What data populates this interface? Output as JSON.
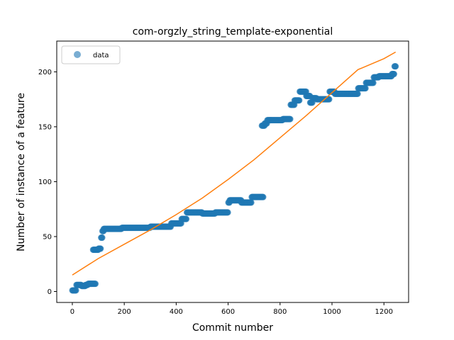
{
  "chart_data": {
    "type": "scatter",
    "title": "com-orgzly_string_template-exponential",
    "xlabel": "Commit number",
    "ylabel": "Number of instance of a feature",
    "xlim": [
      -60,
      1295
    ],
    "ylim": [
      -10,
      228
    ],
    "xticks": [
      0,
      200,
      400,
      600,
      800,
      1000,
      1200
    ],
    "yticks": [
      0,
      50,
      100,
      150,
      200
    ],
    "grid": false,
    "legend": {
      "placement": "top-left",
      "entries": [
        "data"
      ]
    },
    "colors": {
      "data": "#1f77b4",
      "fit": "#ff7f0e"
    },
    "series": [
      {
        "name": "data",
        "kind": "scatter",
        "segments": [
          {
            "x": [
              0,
              15
            ],
            "y": 1
          },
          {
            "x": [
              16,
              35
            ],
            "y": 6
          },
          {
            "x": [
              36,
              50
            ],
            "y": 5
          },
          {
            "x": [
              51,
              60
            ],
            "y": 6
          },
          {
            "x": [
              61,
              90
            ],
            "y": 7
          },
          {
            "x": [
              80,
              100
            ],
            "y": 38
          },
          {
            "x": [
              101,
              110
            ],
            "y": 39
          },
          {
            "x": [
              111,
              115
            ],
            "y": 49
          },
          {
            "x": [
              116,
              120
            ],
            "y": 55
          },
          {
            "x": [
              121,
              190
            ],
            "y": 57
          },
          {
            "x": [
              191,
              300
            ],
            "y": 58
          },
          {
            "x": [
              301,
              380
            ],
            "y": 59
          },
          {
            "x": [
              381,
              420
            ],
            "y": 62
          },
          {
            "x": [
              421,
              440
            ],
            "y": 66
          },
          {
            "x": [
              441,
              500
            ],
            "y": 72
          },
          {
            "x": [
              501,
              550
            ],
            "y": 71
          },
          {
            "x": [
              551,
              600
            ],
            "y": 72
          },
          {
            "x": [
              601,
              605
            ],
            "y": 81
          },
          {
            "x": [
              606,
              650
            ],
            "y": 83
          },
          {
            "x": [
              651,
              690
            ],
            "y": 81
          },
          {
            "x": [
              691,
              735
            ],
            "y": 86
          },
          {
            "x": [
              730,
              740
            ],
            "y": 151
          },
          {
            "x": [
              741,
              750
            ],
            "y": 153
          },
          {
            "x": [
              751,
              810
            ],
            "y": 156
          },
          {
            "x": [
              811,
              840
            ],
            "y": 157
          },
          {
            "x": [
              841,
              855
            ],
            "y": 170
          },
          {
            "x": [
              856,
              875
            ],
            "y": 174
          },
          {
            "x": [
              876,
              900
            ],
            "y": 182
          },
          {
            "x": [
              901,
              915
            ],
            "y": 178
          },
          {
            "x": [
              916,
              925
            ],
            "y": 172
          },
          {
            "x": [
              926,
              940
            ],
            "y": 176
          },
          {
            "x": [
              941,
              990
            ],
            "y": 175
          },
          {
            "x": [
              991,
              1010
            ],
            "y": 182
          },
          {
            "x": [
              1011,
              1100
            ],
            "y": 180
          },
          {
            "x": [
              1101,
              1130
            ],
            "y": 185
          },
          {
            "x": [
              1131,
              1160
            ],
            "y": 190
          },
          {
            "x": [
              1161,
              1180
            ],
            "y": 195
          },
          {
            "x": [
              1181,
              1230
            ],
            "y": 196
          },
          {
            "x": [
              1231,
              1240
            ],
            "y": 198
          },
          {
            "x": [
              1241,
              1245
            ],
            "y": 205
          }
        ]
      },
      {
        "name": "fit",
        "kind": "line",
        "x": [
          0,
          100,
          200,
          300,
          400,
          500,
          600,
          700,
          800,
          900,
          1000,
          1100,
          1200,
          1245
        ],
        "y": [
          15,
          30,
          43,
          56,
          70,
          85,
          102,
          120,
          140,
          160,
          181,
          202,
          212,
          218
        ]
      }
    ]
  }
}
